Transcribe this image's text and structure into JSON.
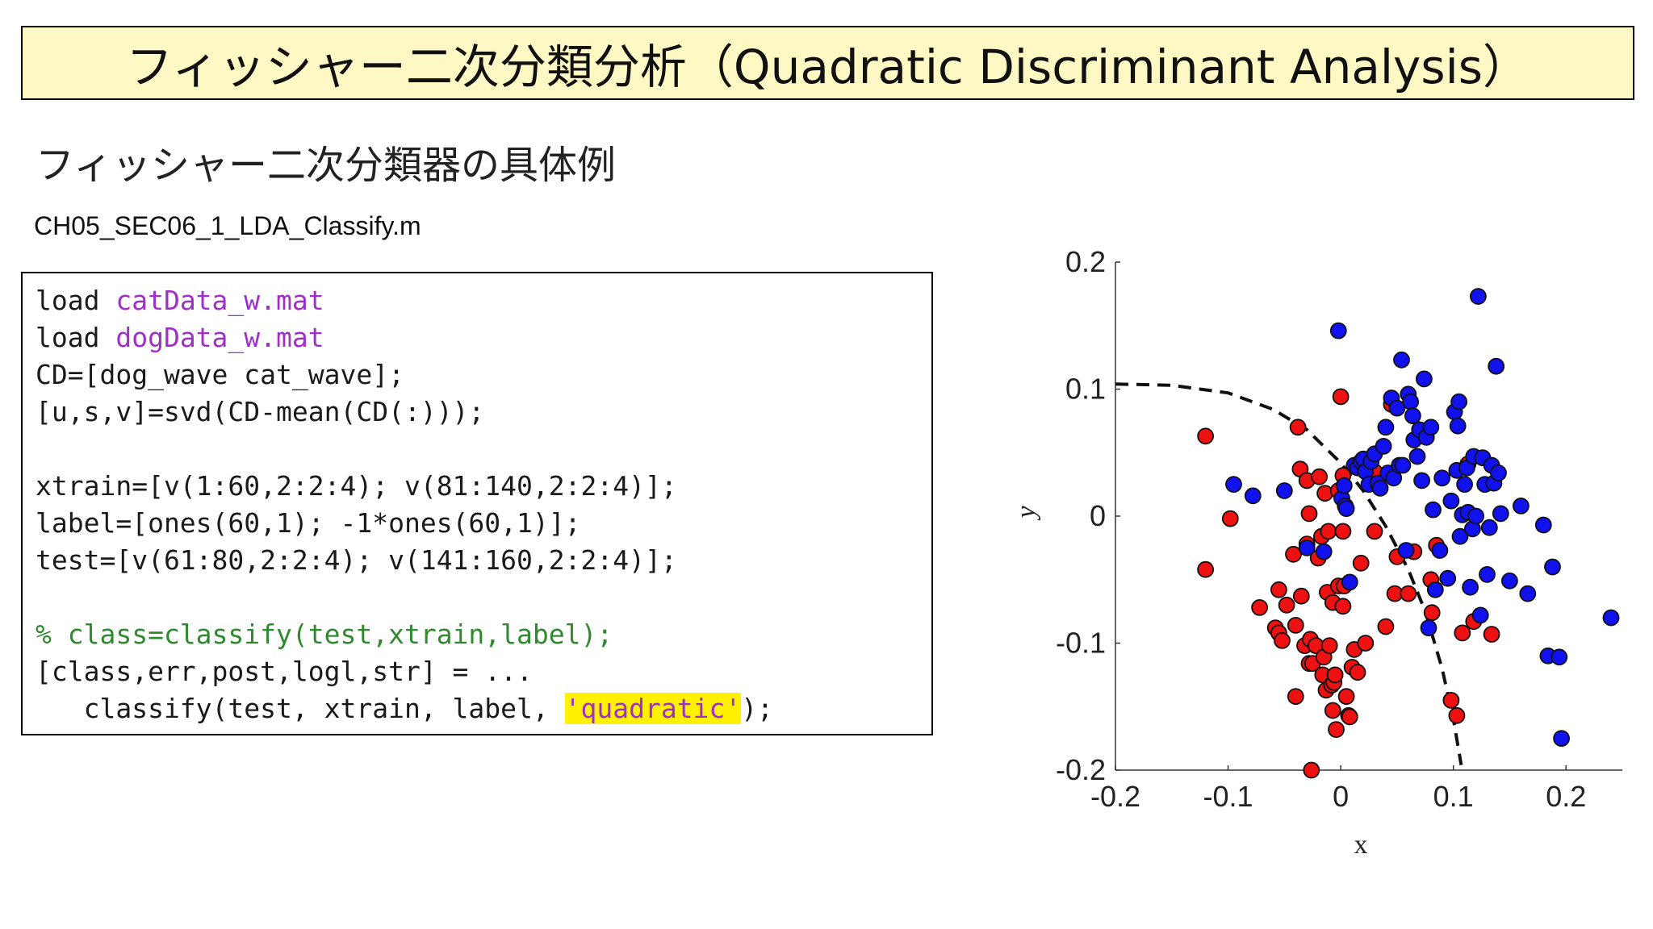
{
  "slide": {
    "title": "フィッシャー二次分類分析（Quadratic Discriminant Analysis）",
    "subtitle": "フィッシャー二次分類器の具体例",
    "filename": "CH05_SEC06_1_LDA_Classify.m"
  },
  "code": {
    "l1_kw": "load ",
    "l1_str": "catData_w.mat",
    "l2_kw": "load ",
    "l2_str": "dogData_w.mat",
    "l3": "CD=[dog_wave cat_wave];",
    "l4": "[u,s,v]=svd(CD-mean(CD(:)));",
    "l5": "xtrain=[v(1:60,2:2:4); v(81:140,2:2:4)];",
    "l6": "label=[ones(60,1); -1*ones(60,1)];",
    "l7": "test=[v(61:80,2:2:4); v(141:160,2:2:4)];",
    "l8_comment": "% class=classify(test,xtrain,label);",
    "l9": "[class,err,post,logl,str] = ...",
    "l10_pre": "   classify(test, xtrain, label, ",
    "l10_str": "'quadratic'",
    "l10_post": ");"
  },
  "chart_data": {
    "type": "scatter",
    "xlabel": "x",
    "ylabel": "y",
    "xlim": [
      -0.2,
      0.25
    ],
    "ylim": [
      -0.2,
      0.2
    ],
    "xticks": [
      "-0.2",
      "-0.1",
      "0",
      "0.1",
      "0.2"
    ],
    "yticks": [
      "0.2",
      "0.1",
      "0",
      "-0.1",
      "-0.2"
    ],
    "series": [
      {
        "color": "#ee1111",
        "points": [
          [
            -0.12,
            0.063
          ],
          [
            -0.12,
            -0.042
          ],
          [
            -0.098,
            -0.002
          ],
          [
            -0.072,
            -0.072
          ],
          [
            -0.058,
            -0.088
          ],
          [
            -0.055,
            -0.058
          ],
          [
            -0.055,
            -0.092
          ],
          [
            -0.052,
            -0.098
          ],
          [
            -0.048,
            -0.07
          ],
          [
            -0.042,
            -0.03
          ],
          [
            -0.04,
            -0.142
          ],
          [
            -0.04,
            -0.086
          ],
          [
            -0.038,
            0.07
          ],
          [
            -0.036,
            0.037
          ],
          [
            -0.035,
            -0.063
          ],
          [
            -0.032,
            -0.102
          ],
          [
            -0.03,
            0.028
          ],
          [
            -0.03,
            -0.022
          ],
          [
            -0.028,
            0.002
          ],
          [
            -0.028,
            -0.116
          ],
          [
            -0.027,
            -0.097
          ],
          [
            -0.026,
            -0.2
          ],
          [
            -0.025,
            -0.116
          ],
          [
            -0.022,
            -0.102
          ],
          [
            -0.02,
            -0.033
          ],
          [
            -0.019,
            0.031
          ],
          [
            -0.017,
            -0.016
          ],
          [
            -0.016,
            -0.125
          ],
          [
            -0.015,
            -0.111
          ],
          [
            -0.014,
            0.018
          ],
          [
            -0.013,
            -0.137
          ],
          [
            -0.012,
            -0.06
          ],
          [
            -0.011,
            -0.012
          ],
          [
            -0.01,
            -0.102
          ],
          [
            -0.008,
            -0.133
          ],
          [
            -0.007,
            -0.153
          ],
          [
            -0.007,
            -0.068
          ],
          [
            -0.006,
            -0.131
          ],
          [
            -0.005,
            -0.125
          ],
          [
            -0.004,
            -0.168
          ],
          [
            -0.002,
            0.02
          ],
          [
            -0.002,
            -0.055
          ],
          [
            0,
            0.094
          ],
          [
            0.002,
            0.032
          ],
          [
            0.002,
            -0.012
          ],
          [
            0.002,
            -0.071
          ],
          [
            0.003,
            -0.055
          ],
          [
            0.005,
            -0.142
          ],
          [
            0.007,
            -0.157
          ],
          [
            0.008,
            -0.158
          ],
          [
            0.01,
            -0.119
          ],
          [
            0.012,
            -0.105
          ],
          [
            0.015,
            -0.123
          ],
          [
            0.018,
            -0.037
          ],
          [
            0.022,
            -0.1
          ],
          [
            0.03,
            0.035
          ],
          [
            0.03,
            -0.012
          ],
          [
            0.04,
            -0.087
          ],
          [
            0.045,
            0.088
          ],
          [
            0.048,
            -0.061
          ],
          [
            0.05,
            -0.032
          ],
          [
            0.06,
            -0.061
          ],
          [
            0.065,
            -0.028
          ],
          [
            0.08,
            -0.05
          ],
          [
            0.081,
            -0.076
          ],
          [
            0.085,
            -0.023
          ],
          [
            0.098,
            -0.145
          ],
          [
            0.103,
            -0.157
          ],
          [
            0.108,
            -0.092
          ],
          [
            0.113,
            0.041
          ],
          [
            0.118,
            -0.083
          ],
          [
            0.134,
            -0.093
          ]
        ]
      },
      {
        "color": "#1111ee",
        "points": [
          [
            -0.095,
            0.025
          ],
          [
            -0.078,
            0.016
          ],
          [
            -0.05,
            0.02
          ],
          [
            -0.03,
            -0.025
          ],
          [
            -0.015,
            -0.028
          ],
          [
            -0.002,
            0.146
          ],
          [
            0.001,
            0.014
          ],
          [
            0.003,
            0.024
          ],
          [
            0.004,
            0.008
          ],
          [
            0.005,
            0.006
          ],
          [
            0.008,
            -0.052
          ],
          [
            0.012,
            0.04
          ],
          [
            0.015,
            0.038
          ],
          [
            0.018,
            0.043
          ],
          [
            0.02,
            0.045
          ],
          [
            0.022,
            0.035
          ],
          [
            0.025,
            0.025
          ],
          [
            0.027,
            0.043
          ],
          [
            0.03,
            0.049
          ],
          [
            0.033,
            0.026
          ],
          [
            0.035,
            0.022
          ],
          [
            0.038,
            0.055
          ],
          [
            0.04,
            0.07
          ],
          [
            0.042,
            0.034
          ],
          [
            0.045,
            0.093
          ],
          [
            0.047,
            0.03
          ],
          [
            0.05,
            0.085
          ],
          [
            0.052,
            0.04
          ],
          [
            0.054,
            0.123
          ],
          [
            0.055,
            0.04
          ],
          [
            0.058,
            -0.027
          ],
          [
            0.06,
            0.096
          ],
          [
            0.062,
            0.09
          ],
          [
            0.064,
            0.079
          ],
          [
            0.065,
            0.06
          ],
          [
            0.068,
            0.047
          ],
          [
            0.07,
            0.068
          ],
          [
            0.072,
            0.028
          ],
          [
            0.074,
            0.108
          ],
          [
            0.076,
            0.062
          ],
          [
            0.078,
            -0.088
          ],
          [
            0.08,
            0.07
          ],
          [
            0.082,
            0.005
          ],
          [
            0.084,
            -0.058
          ],
          [
            0.088,
            -0.027
          ],
          [
            0.09,
            0.03
          ],
          [
            0.095,
            -0.049
          ],
          [
            0.098,
            0.012
          ],
          [
            0.101,
            0.082
          ],
          [
            0.103,
            0.036
          ],
          [
            0.104,
            0.071
          ],
          [
            0.105,
            0.09
          ],
          [
            0.106,
            -0.016
          ],
          [
            0.108,
            0.001
          ],
          [
            0.11,
            0.025
          ],
          [
            0.112,
            0.038
          ],
          [
            0.113,
            0.003
          ],
          [
            0.115,
            -0.056
          ],
          [
            0.117,
            -0.01
          ],
          [
            0.118,
            0.047
          ],
          [
            0.12,
            0.0
          ],
          [
            0.122,
            0.173
          ],
          [
            0.124,
            -0.078
          ],
          [
            0.126,
            0.046
          ],
          [
            0.128,
            0.025
          ],
          [
            0.13,
            -0.046
          ],
          [
            0.132,
            -0.009
          ],
          [
            0.134,
            0.04
          ],
          [
            0.136,
            0.026
          ],
          [
            0.138,
            0.118
          ],
          [
            0.14,
            0.034
          ],
          [
            0.142,
            0.002
          ],
          [
            0.15,
            -0.051
          ],
          [
            0.16,
            0.008
          ],
          [
            0.166,
            -0.061
          ],
          [
            0.18,
            -0.007
          ],
          [
            0.184,
            -0.11
          ],
          [
            0.188,
            -0.04
          ],
          [
            0.194,
            -0.111
          ],
          [
            0.196,
            -0.175
          ],
          [
            0.24,
            -0.08
          ]
        ]
      }
    ],
    "boundary": {
      "style": "dashed",
      "points": [
        [
          -0.2,
          0.104
        ],
        [
          -0.15,
          0.103
        ],
        [
          -0.1,
          0.097
        ],
        [
          -0.06,
          0.084
        ],
        [
          -0.03,
          0.068
        ],
        [
          0,
          0.042
        ],
        [
          0.02,
          0.02
        ],
        [
          0.04,
          -0.008
        ],
        [
          0.06,
          -0.042
        ],
        [
          0.075,
          -0.075
        ],
        [
          0.09,
          -0.12
        ],
        [
          0.1,
          -0.16
        ],
        [
          0.107,
          -0.196
        ]
      ]
    }
  }
}
